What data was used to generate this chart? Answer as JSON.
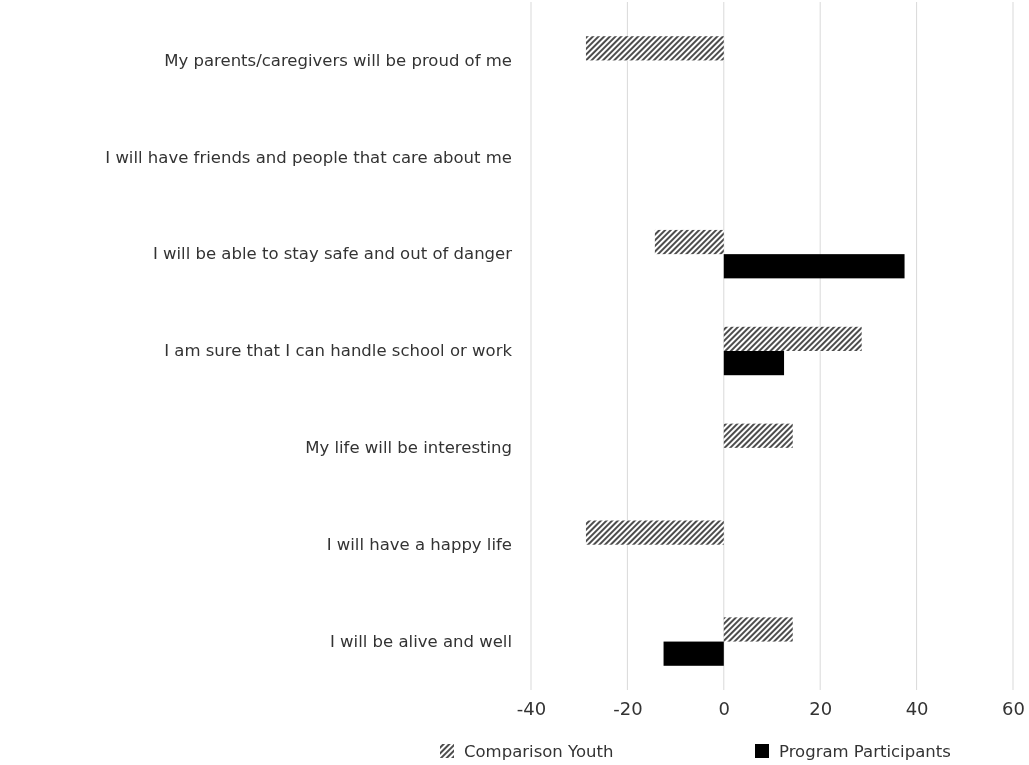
{
  "chart_data": {
    "type": "bar",
    "orientation": "horizontal",
    "categories": [
      "My parents/caregivers will be proud of me",
      "I will have friends and people that care about me",
      "I will be able to stay safe and out of danger",
      "I am sure that I can handle school or work",
      "My life will be interesting",
      "I will have a happy life",
      "I will be alive and well"
    ],
    "series": [
      {
        "name": "Comparison Youth",
        "color": "#4d4d4d",
        "values": [
          -28.6,
          0,
          -14.3,
          28.6,
          14.3,
          -28.6,
          14.3
        ]
      },
      {
        "name": "Program Participants",
        "color": "#000000",
        "values": [
          0,
          0,
          37.5,
          12.5,
          0,
          0,
          -12.5
        ]
      }
    ],
    "xlim": [
      -40,
      60
    ],
    "xticks": [
      -40,
      -20,
      0,
      20,
      40,
      60
    ],
    "grid": "x",
    "legend": "bottom"
  }
}
